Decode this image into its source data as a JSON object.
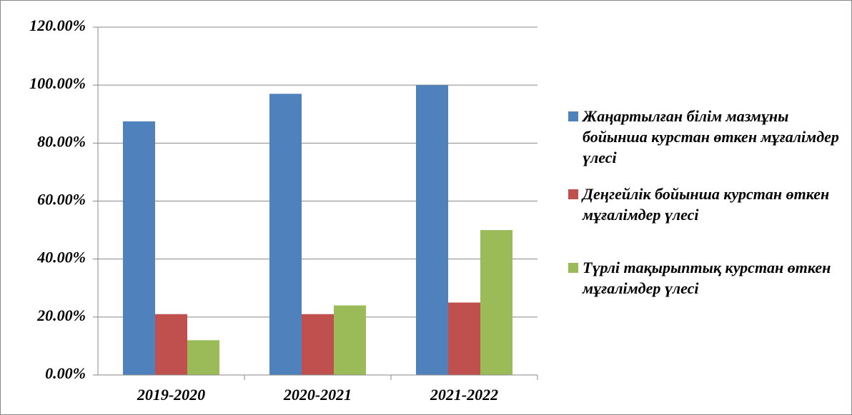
{
  "chart_data": {
    "type": "bar",
    "categories": [
      "2019-2020",
      "2020-2021",
      "2021-2022"
    ],
    "series": [
      {
        "name": "Жаңартылған білім мазмұны бойынша курстан өткен мұғалімдер үлесі",
        "color": "#4f81bd",
        "values": [
          87.5,
          97,
          100
        ]
      },
      {
        "name": "Деңгейлік бойынша курстан өткен мұғалімдер үлесі",
        "color": "#c0504d",
        "values": [
          21,
          21,
          25
        ]
      },
      {
        "name": "Түрлі тақырыптық курстан өткен мұғалімдер үлесі",
        "color": "#9bbb59",
        "values": [
          12,
          24,
          50
        ]
      }
    ],
    "ylim": [
      0,
      120
    ],
    "yticks": [
      {
        "value": 0,
        "label": "0.00%"
      },
      {
        "value": 20,
        "label": "20.00%"
      },
      {
        "value": 40,
        "label": "40.00%"
      },
      {
        "value": 60,
        "label": "60.00%"
      },
      {
        "value": 80,
        "label": "80.00%"
      },
      {
        "value": 100,
        "label": "100.00%"
      },
      {
        "value": 120,
        "label": "120.00%"
      }
    ],
    "grid": true,
    "legend": "right"
  }
}
